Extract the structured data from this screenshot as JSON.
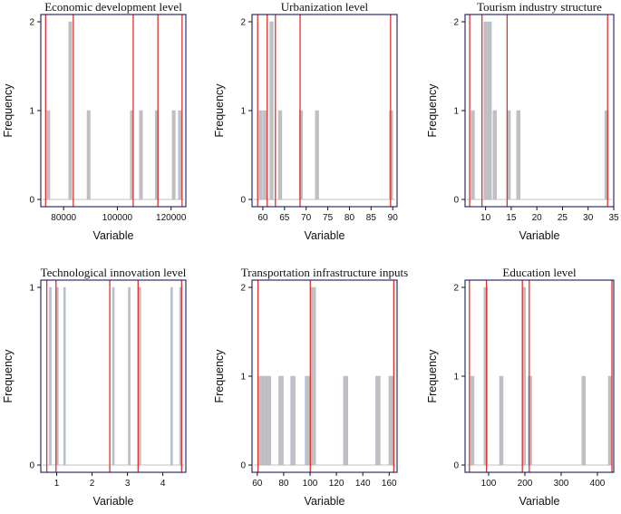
{
  "chart_data": [
    {
      "type": "bar",
      "title": "Economic development level",
      "xlabel": "Variable",
      "ylabel": "Frequency",
      "xlim": [
        71500,
        125500
      ],
      "ylim": [
        0,
        2
      ],
      "xticks": [
        80000,
        100000,
        120000
      ],
      "xtick_labels": [
        "80000",
        "100000",
        "120000"
      ],
      "yticks": [
        0,
        1,
        2
      ],
      "ytick_labels": [
        "0",
        "1",
        "2"
      ],
      "bar_width": 1200,
      "bars": [
        {
          "x": 74300,
          "y": 1
        },
        {
          "x": 82500,
          "y": 2
        },
        {
          "x": 89300,
          "y": 1
        },
        {
          "x": 105400,
          "y": 1
        },
        {
          "x": 108800,
          "y": 1
        },
        {
          "x": 114700,
          "y": 1
        },
        {
          "x": 121000,
          "y": 1
        },
        {
          "x": 123300,
          "y": 1
        }
      ],
      "red_lines": [
        73300,
        83600,
        105900,
        115100,
        124100
      ]
    },
    {
      "type": "bar",
      "title": "Urbanization level",
      "xlabel": "Variable",
      "ylabel": "Frequency",
      "xlim": [
        57.5,
        91
      ],
      "ylim": [
        0,
        2
      ],
      "xticks": [
        60,
        65,
        70,
        75,
        80,
        85,
        90
      ],
      "xtick_labels": [
        "60",
        "65",
        "70",
        "75",
        "80",
        "85",
        "90"
      ],
      "yticks": [
        0,
        1,
        2
      ],
      "ytick_labels": [
        "0",
        "1",
        "2"
      ],
      "bar_width": 0.8,
      "bars": [
        {
          "x": 59.5,
          "y": 1
        },
        {
          "x": 60.5,
          "y": 1
        },
        {
          "x": 62.0,
          "y": 2
        },
        {
          "x": 64.0,
          "y": 1
        },
        {
          "x": 68.8,
          "y": 1
        },
        {
          "x": 72.5,
          "y": 1
        },
        {
          "x": 89.6,
          "y": 1
        }
      ],
      "red_lines": [
        58.8,
        61.0,
        62.9,
        68.6,
        89.5
      ]
    },
    {
      "type": "bar",
      "title": "Tourism industry structure",
      "xlabel": "Variable",
      "ylabel": "Frequency",
      "xlim": [
        6,
        35
      ],
      "ylim": [
        0,
        2
      ],
      "xticks": [
        10,
        15,
        20,
        25,
        30,
        35
      ],
      "xtick_labels": [
        "10",
        "15",
        "20",
        "25",
        "30",
        "35"
      ],
      "yticks": [
        0,
        1,
        2
      ],
      "ytick_labels": [
        "0",
        "1",
        "2"
      ],
      "bar_width": 0.7,
      "bars": [
        {
          "x": 7.5,
          "y": 1
        },
        {
          "x": 10.0,
          "y": 2
        },
        {
          "x": 10.8,
          "y": 2
        },
        {
          "x": 11.8,
          "y": 1
        },
        {
          "x": 14.5,
          "y": 1
        },
        {
          "x": 16.4,
          "y": 1
        },
        {
          "x": 33.6,
          "y": 1
        }
      ],
      "red_lines": [
        6.9,
        9.3,
        14.2,
        33.8
      ]
    },
    {
      "type": "bar",
      "title": "Technological innovation level",
      "xlabel": "Variable",
      "ylabel": "Frequency",
      "xlim": [
        0.55,
        4.65
      ],
      "ylim": [
        0,
        1
      ],
      "xticks": [
        1,
        2,
        3,
        4
      ],
      "xtick_labels": [
        "1",
        "2",
        "3",
        "4"
      ],
      "yticks": [
        0,
        1
      ],
      "ytick_labels": [
        "0",
        "1"
      ],
      "bar_width": 0.055,
      "bars": [
        {
          "x": 0.82,
          "y": 1
        },
        {
          "x": 1.02,
          "y": 1
        },
        {
          "x": 1.22,
          "y": 1
        },
        {
          "x": 2.6,
          "y": 1
        },
        {
          "x": 3.05,
          "y": 1
        },
        {
          "x": 3.35,
          "y": 1
        },
        {
          "x": 4.25,
          "y": 1
        },
        {
          "x": 4.5,
          "y": 1
        }
      ],
      "red_lines": [
        0.72,
        0.98,
        2.5,
        3.3,
        4.53
      ]
    },
    {
      "type": "bar",
      "title": "Transportation infrastructure inputs",
      "xlabel": "Variable",
      "ylabel": "Frequency",
      "xlim": [
        56,
        166
      ],
      "ylim": [
        0,
        2
      ],
      "xticks": [
        60,
        80,
        100,
        120,
        140,
        160
      ],
      "xtick_labels": [
        "60",
        "80",
        "100",
        "120",
        "140",
        "160"
      ],
      "yticks": [
        0,
        1,
        2
      ],
      "ytick_labels": [
        "0",
        "1",
        "2"
      ],
      "bar_width": 3.5,
      "bars": [
        {
          "x": 62,
          "y": 1
        },
        {
          "x": 65.5,
          "y": 1
        },
        {
          "x": 68.5,
          "y": 1
        },
        {
          "x": 78,
          "y": 1
        },
        {
          "x": 87,
          "y": 1
        },
        {
          "x": 98,
          "y": 1
        },
        {
          "x": 102.5,
          "y": 2
        },
        {
          "x": 127,
          "y": 1
        },
        {
          "x": 151.5,
          "y": 1
        },
        {
          "x": 161.5,
          "y": 1
        }
      ],
      "red_lines": [
        60.5,
        100.2,
        163.5
      ]
    },
    {
      "type": "bar",
      "title": "Education level",
      "xlabel": "Variable",
      "ylabel": "Frequency",
      "xlim": [
        35,
        445
      ],
      "ylim": [
        0,
        2
      ],
      "xticks": [
        100,
        200,
        300,
        400
      ],
      "xtick_labels": [
        "100",
        "200",
        "300",
        "400"
      ],
      "yticks": [
        0,
        1,
        2
      ],
      "ytick_labels": [
        "0",
        "1",
        "2"
      ],
      "bar_width": 10,
      "bars": [
        {
          "x": 55,
          "y": 1
        },
        {
          "x": 92,
          "y": 2
        },
        {
          "x": 135,
          "y": 1
        },
        {
          "x": 197,
          "y": 2
        },
        {
          "x": 214,
          "y": 1
        },
        {
          "x": 362,
          "y": 1
        },
        {
          "x": 435,
          "y": 1
        }
      ],
      "red_lines": [
        47,
        94,
        193,
        212,
        440
      ]
    }
  ],
  "colors": {
    "bar": "#c0c0c0",
    "bar_edge": "#a9b4d6",
    "red_line": "#e03030",
    "baseline": "#cfcfcf",
    "frame": "#1b1b5c",
    "text": "#111111"
  }
}
